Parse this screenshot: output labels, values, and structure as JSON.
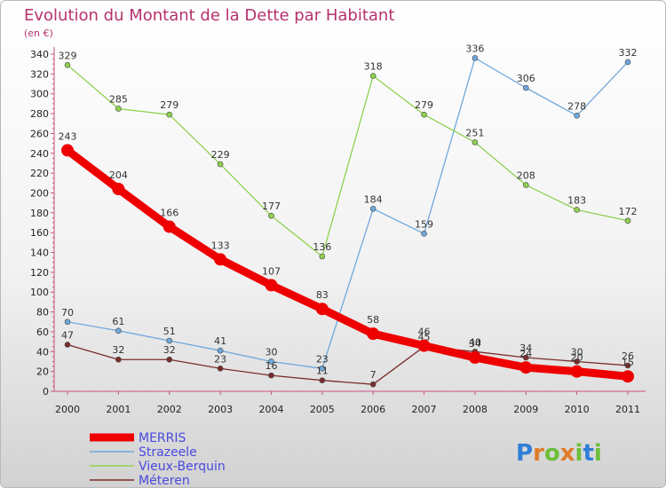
{
  "chart_data": {
    "type": "line",
    "title": "Evolution du Montant de la Dette par Habitant",
    "subtitle": "(en €)",
    "xlabel": "",
    "ylabel": "",
    "categories": [
      "2000",
      "2001",
      "2002",
      "2003",
      "2004",
      "2005",
      "2006",
      "2007",
      "2008",
      "2009",
      "2010",
      "2011"
    ],
    "ylim": [
      0,
      340
    ],
    "yticks": [
      0,
      20,
      40,
      60,
      80,
      100,
      120,
      140,
      160,
      180,
      200,
      220,
      240,
      260,
      280,
      300,
      320,
      340
    ],
    "grid": false,
    "legend_position": "bottom-left",
    "series": [
      {
        "name": "MERRIS",
        "color": "#ee0000",
        "values": [
          243,
          204,
          166,
          133,
          107,
          83,
          58,
          46,
          34,
          24,
          20,
          15
        ]
      },
      {
        "name": "Strazeele",
        "color": "#6fa8dc",
        "values": [
          70,
          61,
          51,
          41,
          30,
          23,
          184,
          159,
          336,
          306,
          278,
          332
        ]
      },
      {
        "name": "Vieux-Berquin",
        "color": "#8fd14f",
        "values": [
          329,
          285,
          279,
          229,
          177,
          136,
          318,
          279,
          251,
          208,
          183,
          172
        ]
      },
      {
        "name": "Méteren",
        "color": "#7b2c2c",
        "values": [
          47,
          32,
          32,
          23,
          16,
          11,
          7,
          45,
          40,
          34,
          30,
          26
        ]
      }
    ]
  },
  "brand": {
    "text": "Proxiti"
  }
}
